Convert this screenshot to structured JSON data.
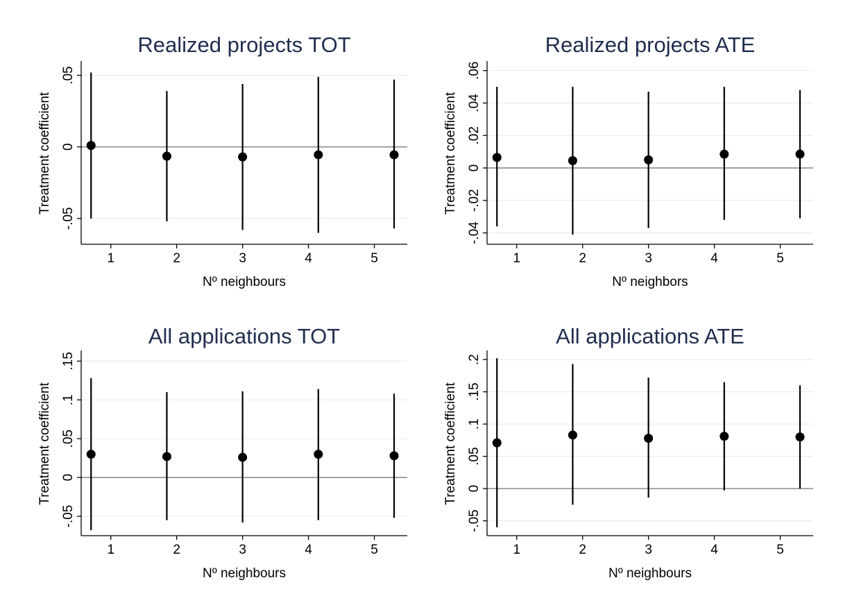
{
  "chart_data": [
    {
      "type": "scatter",
      "title": "Realized projects TOT",
      "xlabel": "Nº neighbours",
      "ylabel": "Treatment coefficient",
      "xticks": [
        1,
        2,
        3,
        4,
        5
      ],
      "xtick_labels": [
        "1",
        "2",
        "3",
        "4",
        "5"
      ],
      "xlim": [
        0.55,
        5.5
      ],
      "yticks": [
        -0.05,
        0,
        0.05
      ],
      "ytick_labels": [
        "-.05",
        "0",
        ".05"
      ],
      "ylim": [
        -0.068,
        0.059
      ],
      "grid": true,
      "reference_line_y": 0,
      "x": [
        0.7,
        1.85,
        3.0,
        4.15,
        5.3
      ],
      "estimate": [
        0.001,
        -0.0065,
        -0.007,
        -0.0055,
        -0.0055
      ],
      "ci_low": [
        -0.05,
        -0.052,
        -0.058,
        -0.06,
        -0.057
      ],
      "ci_high": [
        0.052,
        0.039,
        0.044,
        0.049,
        0.047
      ]
    },
    {
      "type": "scatter",
      "title": "Realized projects ATE",
      "xlabel": "Nº neighbors",
      "ylabel": "Treatment coefficient",
      "xticks": [
        1,
        2,
        3,
        4,
        5
      ],
      "xtick_labels": [
        "1",
        "2",
        "3",
        "4",
        "5"
      ],
      "xlim": [
        0.55,
        5.5
      ],
      "yticks": [
        -0.04,
        -0.02,
        0,
        0.02,
        0.04,
        0.06
      ],
      "ytick_labels": [
        "-.04",
        "-.02",
        "0",
        ".02",
        ".04",
        ".06"
      ],
      "ylim": [
        -0.047,
        0.065
      ],
      "grid": true,
      "reference_line_y": 0,
      "x": [
        0.7,
        1.85,
        3.0,
        4.15,
        5.3
      ],
      "estimate": [
        0.0065,
        0.0045,
        0.005,
        0.0085,
        0.0085
      ],
      "ci_low": [
        -0.036,
        -0.041,
        -0.037,
        -0.032,
        -0.031
      ],
      "ci_high": [
        0.05,
        0.05,
        0.047,
        0.05,
        0.048
      ]
    },
    {
      "type": "scatter",
      "title": "All applications TOT",
      "xlabel": "Nº neighbours",
      "ylabel": "Treatment coefficient",
      "xticks": [
        1,
        2,
        3,
        4,
        5
      ],
      "xtick_labels": [
        "1",
        "2",
        "3",
        "4",
        "5"
      ],
      "xlim": [
        0.55,
        5.5
      ],
      "yticks": [
        -0.05,
        0,
        0.05,
        0.1,
        0.15
      ],
      "ytick_labels": [
        "-.05",
        "0",
        ".05",
        ".1",
        ".15"
      ],
      "ylim": [
        -0.075,
        0.162
      ],
      "grid": true,
      "reference_line_y": 0,
      "x": [
        0.7,
        1.85,
        3.0,
        4.15,
        5.3
      ],
      "estimate": [
        0.03,
        0.027,
        0.026,
        0.03,
        0.028
      ],
      "ci_low": [
        -0.068,
        -0.055,
        -0.058,
        -0.055,
        -0.052
      ],
      "ci_high": [
        0.128,
        0.11,
        0.111,
        0.114,
        0.108
      ]
    },
    {
      "type": "scatter",
      "title": "All applications ATE",
      "xlabel": "Nº neighbours",
      "ylabel": "Treatment coefficient",
      "xticks": [
        1,
        2,
        3,
        4,
        5
      ],
      "xtick_labels": [
        "1",
        "2",
        "3",
        "4",
        "5"
      ],
      "xlim": [
        0.55,
        5.5
      ],
      "yticks": [
        -0.05,
        0,
        0.05,
        0.1,
        0.15,
        0.2
      ],
      "ytick_labels": [
        "-.05",
        "0",
        ".05",
        ".1",
        ".15",
        ".2"
      ],
      "ylim": [
        -0.073,
        0.212
      ],
      "grid": true,
      "reference_line_y": 0,
      "x": [
        0.7,
        1.85,
        3.0,
        4.15,
        5.3
      ],
      "estimate": [
        0.071,
        0.083,
        0.078,
        0.081,
        0.08
      ],
      "ci_low": [
        -0.06,
        -0.025,
        -0.014,
        -0.003,
        0.0
      ],
      "ci_high": [
        0.202,
        0.193,
        0.172,
        0.165,
        0.16
      ]
    }
  ]
}
